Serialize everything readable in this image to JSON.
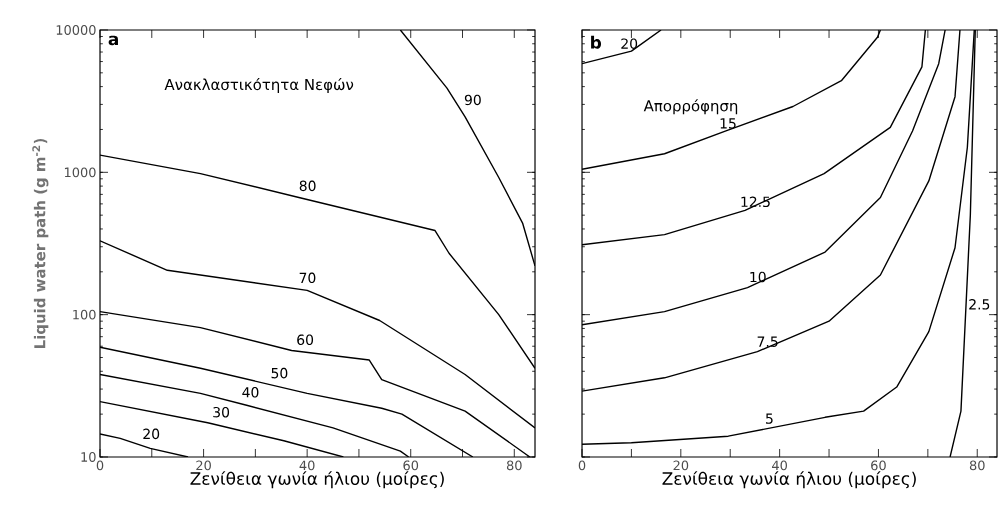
{
  "chart_data": [
    {
      "type": "line",
      "title": "a",
      "subtitle": "Ανακλαστικότητα Νεφών",
      "xlabel": "Ζενίθεια γωνία ήλιου (μοίρες)",
      "ylabel": "Liquid water path (g m$^{-2}$)",
      "log": "y",
      "marker": "none",
      "xlim": [
        0,
        84
      ],
      "ylim": [
        10,
        10000
      ],
      "xticks": [
        0,
        {
          "value": 10,
          "label": null
        },
        20,
        {
          "value": 30,
          "label": null
        },
        40,
        {
          "value": 50,
          "label": null
        },
        60,
        {
          "value": 70,
          "label": null
        },
        80
      ],
      "yticks": [
        10,
        100,
        1000,
        10000
      ],
      "series": [
        {
          "name": "90",
          "color": "#000000",
          "x": [
            58,
            67,
            70.5,
            77,
            81.6,
            84
          ],
          "values": [
            10000,
            3900,
            2450,
            920,
            440,
            220
          ]
        },
        {
          "name": "80",
          "color": "#000000",
          "x": [
            0,
            19.4,
            38.8,
            64.7,
            67.4,
            77,
            84
          ],
          "values": [
            1320,
            980,
            660,
            390,
            270,
            100,
            42
          ]
        },
        {
          "name": "70",
          "color": "#000000",
          "x": [
            0,
            13,
            40,
            54,
            70.5,
            84
          ],
          "values": [
            330,
            205,
            148,
            91,
            38,
            16
          ]
        },
        {
          "name": "60",
          "color": "#000000",
          "x": [
            0,
            19.4,
            37,
            52,
            54.4,
            70.5,
            83
          ],
          "values": [
            105,
            81,
            56,
            48,
            35,
            21,
            10
          ]
        },
        {
          "name": "50",
          "color": "#000000",
          "x": [
            0,
            19.4,
            40,
            54.4,
            58.3,
            72
          ],
          "values": [
            59,
            42,
            28,
            22,
            20,
            10
          ]
        },
        {
          "name": "40",
          "color": "#000000",
          "x": [
            0,
            19.4,
            28.5,
            45,
            58,
            59.6
          ],
          "values": [
            38,
            28,
            23,
            16,
            11,
            10
          ]
        },
        {
          "name": "30",
          "color": "#000000",
          "x": [
            0,
            20.8,
            35.5,
            47
          ],
          "values": [
            24.5,
            17.4,
            13,
            10
          ]
        },
        {
          "name": "20",
          "color": "#000000",
          "x": [
            0,
            3.9,
            9.7,
            17
          ],
          "values": [
            14.5,
            13.5,
            11.5,
            10
          ]
        }
      ]
    },
    {
      "type": "line",
      "title": "b",
      "subtitle": "Απορρόφηση",
      "xlabel": "Ζενίθεια γωνία ήλιου (μοίρες)",
      "log": "y",
      "marker": "none",
      "tick_labels": "x",
      "xlim": [
        0,
        84
      ],
      "ylim": [
        10,
        10000
      ],
      "xticks": [
        0,
        {
          "value": 10,
          "label": null
        },
        20,
        {
          "value": 30,
          "label": null
        },
        40,
        {
          "value": 50,
          "label": null
        },
        60,
        {
          "value": 70,
          "label": null
        },
        80
      ],
      "yticks": [
        10,
        100,
        1000,
        10000
      ],
      "series": [
        {
          "name": "20",
          "color": "#000000",
          "x": [
            0,
            10,
            16
          ],
          "values": [
            5800,
            7100,
            10000
          ]
        },
        {
          "name": "15",
          "color": "#000000",
          "x": [
            0,
            16.7,
            29,
            42.7,
            52.5,
            59.8,
            60.4
          ],
          "values": [
            1050,
            1350,
            1950,
            2900,
            4400,
            8900,
            10000
          ]
        },
        {
          "name": "12.5",
          "color": "#000000",
          "x": [
            0,
            16.7,
            33,
            49,
            62.4,
            68.8,
            69.5
          ],
          "values": [
            310,
            365,
            540,
            980,
            2070,
            5500,
            10000
          ]
        },
        {
          "name": "10",
          "color": "#000000",
          "x": [
            0,
            16.7,
            33.5,
            49.2,
            60.4,
            66.9,
            72.2,
            73.5
          ],
          "values": [
            85,
            105,
            155,
            275,
            665,
            1950,
            5800,
            10000
          ]
        },
        {
          "name": "7.5",
          "color": "#000000",
          "x": [
            0,
            16.7,
            35.5,
            50,
            60.4,
            70.2,
            75.5,
            76.5
          ],
          "values": [
            29,
            36,
            55,
            90,
            190,
            870,
            3400,
            10000
          ]
        },
        {
          "name": "5",
          "color": "#000000",
          "x": [
            0,
            10,
            29.6,
            49.2,
            57,
            63.7,
            70.2,
            75.5,
            78,
            79.4
          ],
          "values": [
            12.3,
            12.6,
            14,
            19,
            21,
            31,
            76,
            295,
            1500,
            10000
          ]
        },
        {
          "name": "2.5",
          "color": "#000000",
          "x": [
            74.5,
            76.7,
            78.6,
            79.6
          ],
          "values": [
            10,
            21,
            500,
            10000
          ]
        }
      ]
    }
  ]
}
